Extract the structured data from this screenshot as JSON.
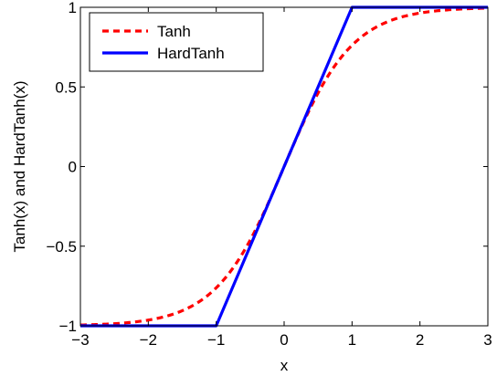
{
  "chart_data": {
    "type": "line",
    "xlabel": "x",
    "ylabel": "Tanh(x) and HardTanh(x)",
    "xlim": [
      -3,
      3
    ],
    "ylim": [
      -1,
      1
    ],
    "xticks": [
      -3,
      -2,
      -1,
      0,
      1,
      2,
      3
    ],
    "xtick_labels": [
      "−3",
      "−2",
      "−1",
      "0",
      "1",
      "2",
      "3"
    ],
    "yticks": [
      -1,
      -0.5,
      0,
      0.5,
      1
    ],
    "ytick_labels": [
      "−1",
      "−0.5",
      "0",
      "0.5",
      "1"
    ],
    "grid": false,
    "legend_position": "top-left",
    "series": [
      {
        "name": "Tanh",
        "function": "tanh",
        "color": "#ff0000",
        "style": "dashed",
        "x": [
          -3,
          -2.5,
          -2,
          -1.5,
          -1.25,
          -1,
          -0.75,
          -0.5,
          -0.25,
          0,
          0.25,
          0.5,
          0.75,
          1,
          1.25,
          1.5,
          2,
          2.5,
          3
        ],
        "y": [
          -0.995,
          -0.987,
          -0.964,
          -0.905,
          -0.848,
          -0.762,
          -0.635,
          -0.462,
          -0.245,
          0,
          0.245,
          0.462,
          0.635,
          0.762,
          0.848,
          0.905,
          0.964,
          0.987,
          0.995
        ]
      },
      {
        "name": "HardTanh",
        "function": "hardtanh",
        "color": "#0000ff",
        "style": "solid",
        "x": [
          -3,
          -1,
          1,
          3
        ],
        "y": [
          -1,
          -1,
          1,
          1
        ]
      }
    ]
  }
}
